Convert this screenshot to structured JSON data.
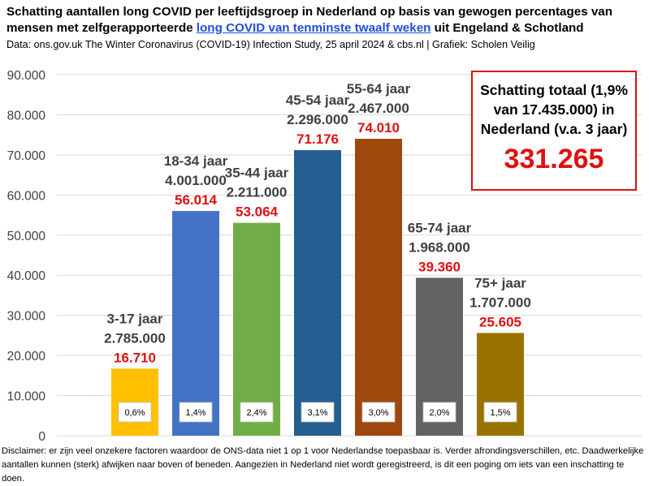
{
  "title_part1": "Schatting aantallen long COVID per leeftijdsgroep in Nederland op basis van gewogen percentages van mensen met zelfgerapporteerde ",
  "title_highlight": "long COVID van tenminste twaalf weken",
  "title_part2": " uit Engeland & Schotland",
  "source": "Data: ons.gov.uk The Winter Coronavirus (COVID-19) Infection Study, 25 april 2024 & cbs.nl | Grafiek: Scholen Veilig",
  "total_box": {
    "label": "Schatting totaal (1,9% van 17.435.000) in Nederland (v.a. 3 jaar)",
    "value": "331.265"
  },
  "disclaimer": "Disclaimer: er zijn veel onzekere factoren waardoor de ONS-data niet 1 op 1 voor Nederlandse toepasbaar is. Verder afrondingsverschillen, etc. Daadwerkelijke aantallen kunnen (sterk) afwijken naar boven of beneden. Aangezien in Nederland niet wordt geregistreerd, is dit een poging om iets van een inschatting te doen.",
  "chart_data": {
    "type": "bar",
    "categories": [
      "3-17 jaar",
      "18-34 jaar",
      "35-44 jaar",
      "45-54 jaar",
      "55-64 jaar",
      "65-74 jaar",
      "75+ jaar"
    ],
    "populations": [
      "2.785.000",
      "4.001.000",
      "2.211.000",
      "2.296.000",
      "2.467.000",
      "1.968.000",
      "1.707.000"
    ],
    "values": [
      16710,
      56014,
      53064,
      71176,
      74010,
      39360,
      25605
    ],
    "value_labels": [
      "16.710",
      "56.014",
      "53.064",
      "71.176",
      "74.010",
      "39.360",
      "25.605"
    ],
    "percentages": [
      "0,6%",
      "1,4%",
      "2,4%",
      "3,1%",
      "3,0%",
      "2,0%",
      "1,5%"
    ],
    "colors": [
      "#ffc000",
      "#4472c4",
      "#70ad47",
      "#255e91",
      "#9e480e",
      "#636363",
      "#997300"
    ],
    "ylim": [
      0,
      90000
    ],
    "yticks": [
      0,
      10000,
      20000,
      30000,
      40000,
      50000,
      60000,
      70000,
      80000,
      90000
    ],
    "ytick_labels": [
      "0",
      "10.000",
      "20.000",
      "30.000",
      "40.000",
      "50.000",
      "60.000",
      "70.000",
      "80.000",
      "90.000"
    ],
    "grid": true,
    "value_label_color": "#e01010"
  }
}
